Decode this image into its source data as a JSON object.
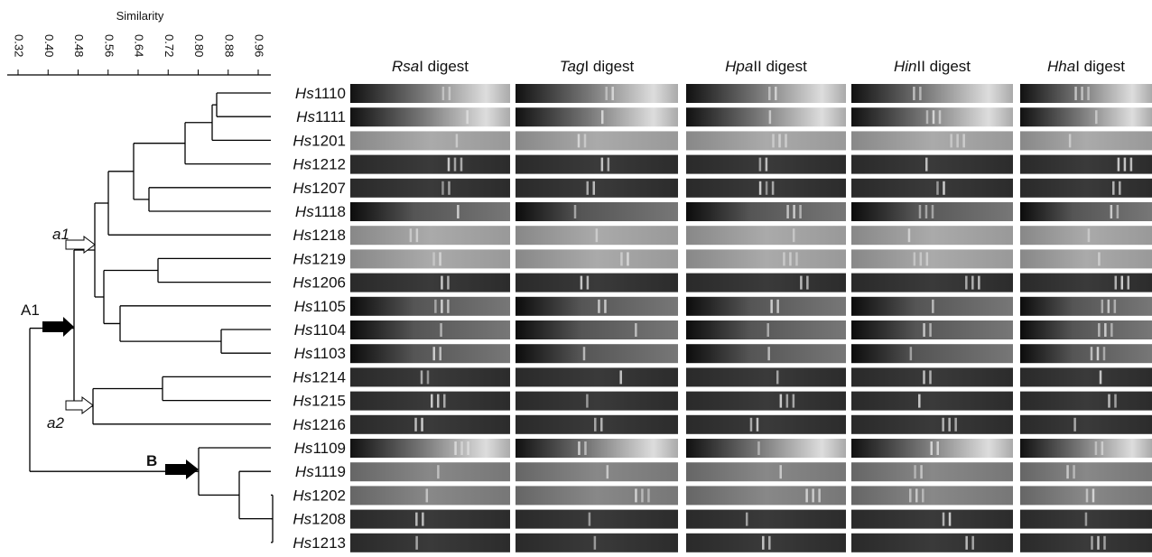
{
  "axis": {
    "label": "Similarity",
    "ticks": [
      0.32,
      0.4,
      0.48,
      0.56,
      0.64,
      0.72,
      0.8,
      0.88,
      0.96
    ],
    "tick_labels": [
      "0.32",
      "0.40",
      "0.48",
      "0.56",
      "0.64",
      "0.72",
      "0.80",
      "0.88",
      "0.96"
    ]
  },
  "columns": [
    {
      "italic": "Rsa",
      "text": "I digest"
    },
    {
      "italic": "Tag",
      "text": "I digest"
    },
    {
      "italic": "Hpa",
      "text": "II digest"
    },
    {
      "italic": "Hin",
      "text": "II digest"
    },
    {
      "italic": "Hha",
      "text": "I digest"
    }
  ],
  "rows": [
    {
      "italic": "Hs",
      "text": "1110"
    },
    {
      "italic": "Hs",
      "text": "1111"
    },
    {
      "italic": "Hs",
      "text": "1201"
    },
    {
      "italic": "Hs",
      "text": "1212"
    },
    {
      "italic": "Hs",
      "text": "1207"
    },
    {
      "italic": "Hs",
      "text": "1118"
    },
    {
      "italic": "Hs",
      "text": "1218"
    },
    {
      "italic": "Hs",
      "text": "1219"
    },
    {
      "italic": "Hs",
      "text": "1206"
    },
    {
      "italic": "Hs",
      "text": "1105"
    },
    {
      "italic": "Hs",
      "text": "1104"
    },
    {
      "italic": "Hs",
      "text": "1103"
    },
    {
      "italic": "Hs",
      "text": "1214"
    },
    {
      "italic": "Hs",
      "text": "1215"
    },
    {
      "italic": "Hs",
      "text": "1216"
    },
    {
      "italic": "Hs",
      "text": "1109"
    },
    {
      "italic": "Hs",
      "text": "1119"
    },
    {
      "italic": "Hs",
      "text": "1202"
    },
    {
      "italic": "Hs",
      "text": "1208"
    },
    {
      "italic": "Hs",
      "text": "1213"
    }
  ],
  "clusters": {
    "a1": "a1",
    "a2": "a2",
    "A1": "A1",
    "B": "B"
  }
}
